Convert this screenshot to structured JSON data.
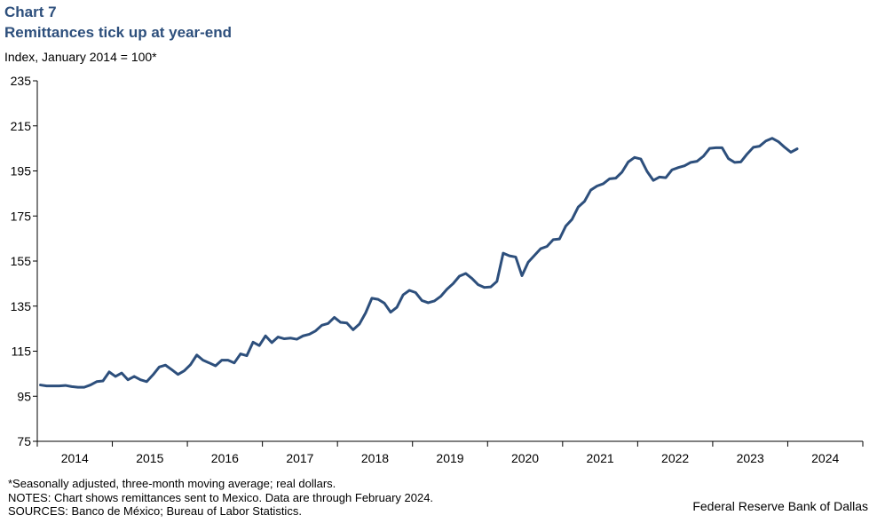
{
  "header": {
    "chart_number": "Chart 7",
    "title": "Remittances tick up at year-end",
    "unit_label": "Index, January 2014 = 100*"
  },
  "footer": {
    "note1": "*Seasonally adjusted, three-month moving average; real dollars.",
    "note2": "NOTES: Chart shows remittances sent to Mexico. Data are through February 2024.",
    "sources": "SOURCES: Banco de México; Bureau of Labor Statistics.",
    "credit": "Federal Reserve Bank of Dallas"
  },
  "colors": {
    "line": "#2d4f7c",
    "title": "#2d4f7c",
    "axis": "#000000"
  },
  "chart_data": {
    "type": "line",
    "title": "Remittances tick up at year-end",
    "ylabel": "Index, January 2014 = 100*",
    "xlabel": "",
    "ylim": [
      75,
      235
    ],
    "yticks": [
      75,
      95,
      115,
      135,
      155,
      175,
      195,
      215,
      235
    ],
    "xlim": [
      "2014-01",
      "2024-12"
    ],
    "x_tick_labels": [
      "2014",
      "2015",
      "2016",
      "2017",
      "2018",
      "2019",
      "2020",
      "2021",
      "2022",
      "2023",
      "2024"
    ],
    "grid": false,
    "legend": "none",
    "series": [
      {
        "frequency": "monthly",
        "start": "2014-01",
        "end": "2024-02",
        "values": [
          100.0,
          99.6,
          99.6,
          99.6,
          99.8,
          99.3,
          99.0,
          99.0,
          100.0,
          101.5,
          101.8,
          105.8,
          103.8,
          105.3,
          102.3,
          103.8,
          102.3,
          101.5,
          104.5,
          108.0,
          108.8,
          106.8,
          104.7,
          106.3,
          109.0,
          113.3,
          111.0,
          109.8,
          108.5,
          111.0,
          111.0,
          109.8,
          113.8,
          113.0,
          119.0,
          117.5,
          121.8,
          118.8,
          121.3,
          120.5,
          120.8,
          120.3,
          121.8,
          122.5,
          124.0,
          126.5,
          127.3,
          130.0,
          127.8,
          127.5,
          124.5,
          127.0,
          132.0,
          138.5,
          138.0,
          136.3,
          132.3,
          134.5,
          140.0,
          142.0,
          141.0,
          137.5,
          136.5,
          137.3,
          139.3,
          142.5,
          145.0,
          148.3,
          149.5,
          147.3,
          144.5,
          143.3,
          143.5,
          146.0,
          158.5,
          157.3,
          156.8,
          148.5,
          154.5,
          157.5,
          160.5,
          161.5,
          164.5,
          164.8,
          170.5,
          173.5,
          179.0,
          181.5,
          186.5,
          188.3,
          189.3,
          191.5,
          191.8,
          194.5,
          199.0,
          201.0,
          200.3,
          194.8,
          190.8,
          192.3,
          192.0,
          195.5,
          196.5,
          197.3,
          198.8,
          199.3,
          201.5,
          205.0,
          205.3,
          205.3,
          200.5,
          198.8,
          199.0,
          202.5,
          205.5,
          206.0,
          208.3,
          209.5,
          208.0,
          205.5,
          203.3,
          204.8
        ]
      }
    ]
  }
}
